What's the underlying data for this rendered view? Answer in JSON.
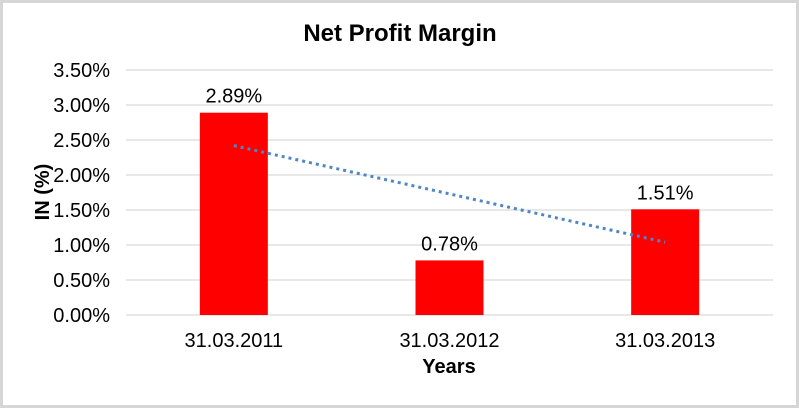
{
  "chart_data": {
    "type": "bar",
    "title": "Net Profit Margin",
    "xlabel": "Years",
    "ylabel": "IN (%)",
    "categories": [
      "31.03.2011",
      "31.03.2012",
      "31.03.2013"
    ],
    "values": [
      2.89,
      0.78,
      1.51
    ],
    "data_labels": [
      "2.89%",
      "0.78%",
      "1.51%"
    ],
    "ylim": [
      0,
      3.5
    ],
    "ytick_step": 0.5,
    "ytick_labels": [
      "0.00%",
      "0.50%",
      "1.00%",
      "1.50%",
      "2.00%",
      "2.50%",
      "3.00%",
      "3.50%"
    ],
    "grid": true,
    "legend": "none",
    "bar_color": "#FF0000",
    "gridline_color": "#D9D9D9",
    "text_color": "#000000",
    "frame_color": "#D6D6D6",
    "trendline": {
      "type": "linear",
      "style": "dotted",
      "color": "#4F86C6",
      "start_value": 2.42,
      "end_value": 1.04
    }
  }
}
